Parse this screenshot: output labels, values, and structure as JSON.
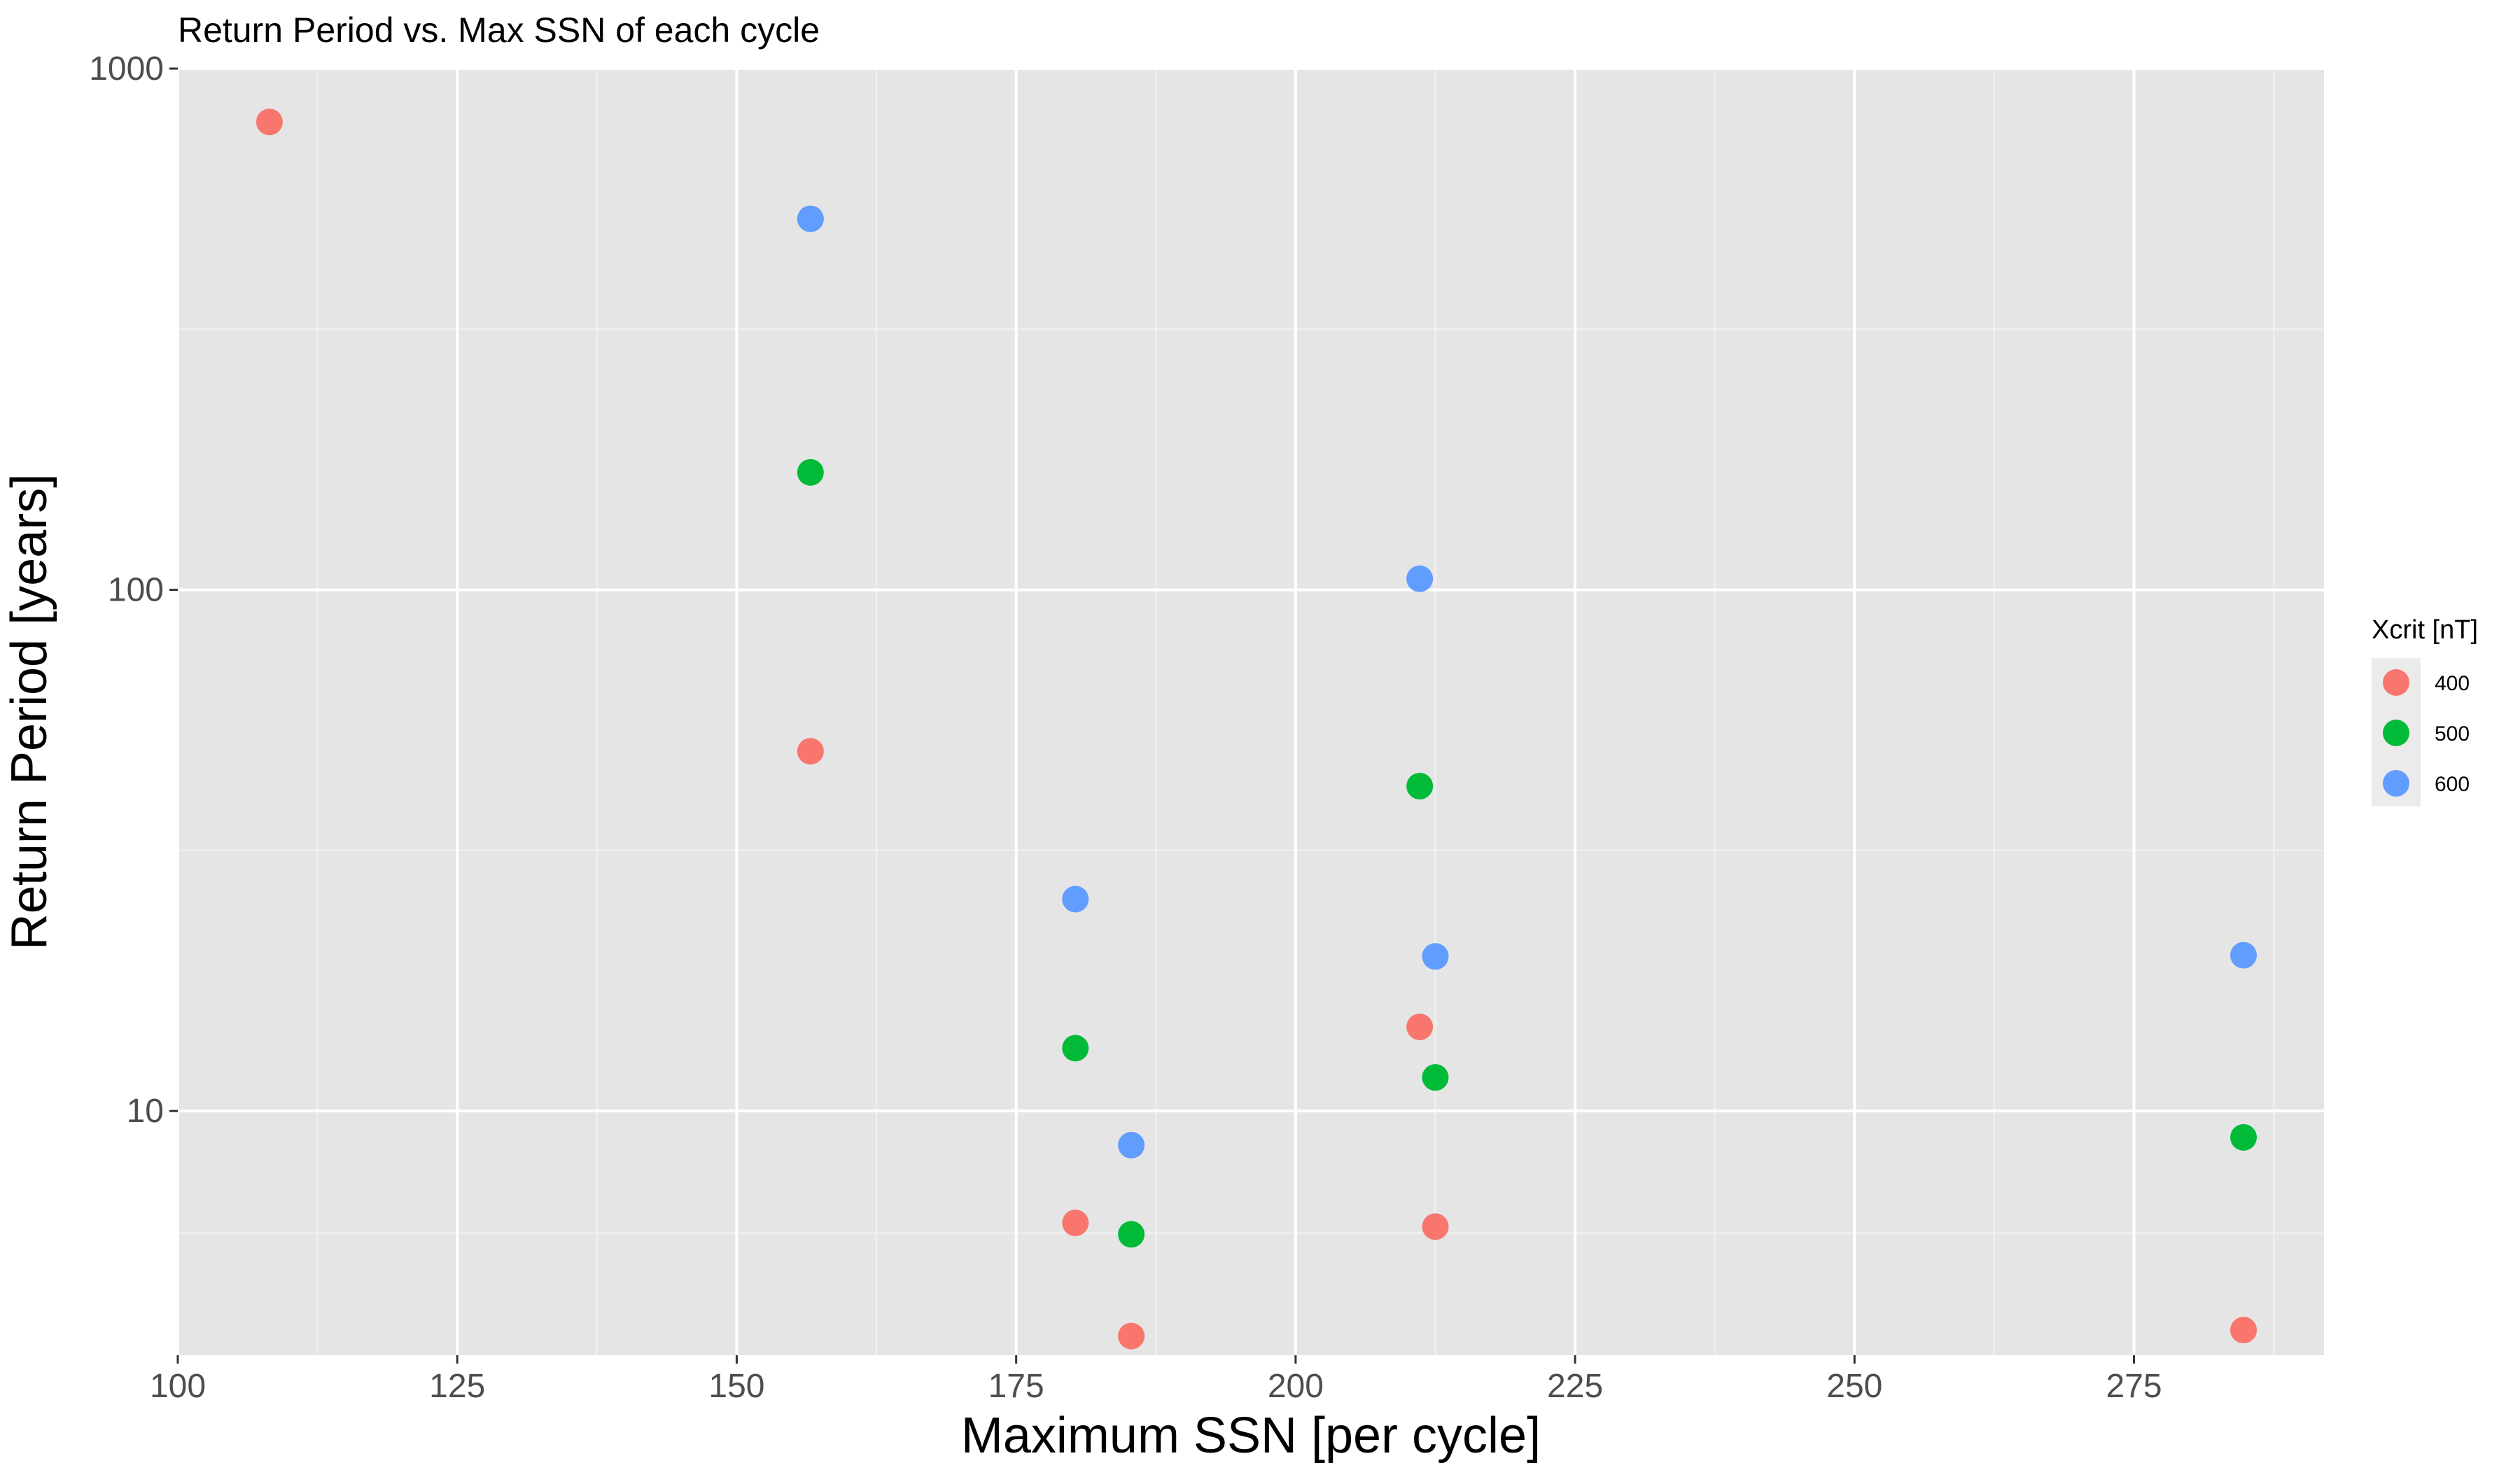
{
  "chart_data": {
    "type": "scatter",
    "title": "Return Period vs. Max SSN of each cycle",
    "xlabel": "Maximum SSN [per cycle]",
    "ylabel": "Return Period [years]",
    "xlim": [
      100,
      292
    ],
    "ylim": [
      3.4,
      1000
    ],
    "yscale": "log",
    "x_ticks": [
      100,
      125,
      150,
      175,
      200,
      225,
      250,
      275
    ],
    "x_tick_labels": [
      "100",
      "125",
      "150",
      "175",
      "200",
      "225",
      "250",
      "275"
    ],
    "y_ticks": [
      10,
      100,
      1000
    ],
    "y_tick_labels": [
      "10",
      "100",
      "1000"
    ],
    "grid": true,
    "legend": {
      "title": "Xcrit [nT]",
      "position": "right"
    },
    "series": [
      {
        "name": "400",
        "color": "#F8766D",
        "x": [
          108.2,
          156.6,
          180.3,
          185.3,
          211.1,
          212.5,
          284.8
        ],
        "y": [
          790,
          49,
          6.1,
          3.7,
          14.5,
          6.0,
          3.8
        ]
      },
      {
        "name": "500",
        "color": "#00BA38",
        "x": [
          156.6,
          180.3,
          185.3,
          211.1,
          212.5,
          284.8
        ],
        "y": [
          168,
          13.2,
          5.8,
          42,
          11.6,
          8.9
        ]
      },
      {
        "name": "600",
        "color": "#619CFF",
        "x": [
          156.6,
          180.3,
          185.3,
          211.1,
          212.5,
          284.8
        ],
        "y": [
          515,
          25.5,
          8.6,
          105,
          19.8,
          19.9
        ]
      }
    ]
  }
}
